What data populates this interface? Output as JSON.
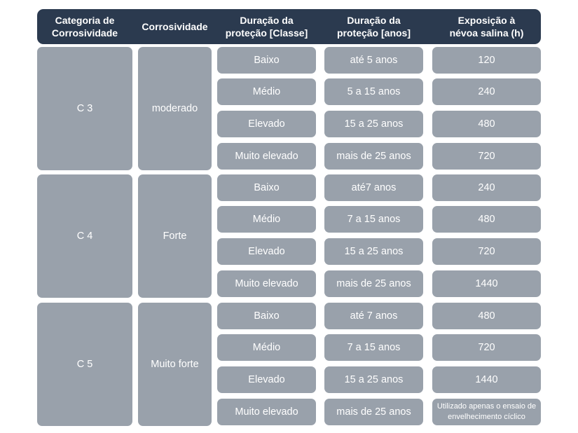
{
  "headers": [
    "Categoria de\nCorrosividade",
    "Corrosividade",
    "Duração da\nproteção [Classe]",
    "Duração da\nproteção [anos]",
    "Exposição à\nnévoa salina (h)"
  ],
  "groups": [
    {
      "category": "C 3",
      "corrosivity": "moderado",
      "rows": [
        {
          "class": "Baixo",
          "years": "até 5 anos",
          "exposure": "120"
        },
        {
          "class": "Médio",
          "years": "5 a 15 anos",
          "exposure": "240"
        },
        {
          "class": "Elevado",
          "years": "15 a 25 anos",
          "exposure": "480"
        },
        {
          "class": "Muito elevado",
          "years": "mais de 25 anos",
          "exposure": "720"
        }
      ]
    },
    {
      "category": "C 4",
      "corrosivity": "Forte",
      "rows": [
        {
          "class": "Baixo",
          "years": "até7 anos",
          "exposure": "240"
        },
        {
          "class": "Médio",
          "years": "7 a 15 anos",
          "exposure": "480"
        },
        {
          "class": "Elevado",
          "years": "15 a 25 anos",
          "exposure": "720"
        },
        {
          "class": "Muito elevado",
          "years": "mais de 25 anos",
          "exposure": "1440"
        }
      ]
    },
    {
      "category": "C 5",
      "corrosivity": "Muito forte",
      "rows": [
        {
          "class": "Baixo",
          "years": "até 7 anos",
          "exposure": "480"
        },
        {
          "class": "Médio",
          "years": "7 a 15 anos",
          "exposure": "720"
        },
        {
          "class": "Elevado",
          "years": "15 a 25 anos",
          "exposure": "1440"
        },
        {
          "class": "Muito elevado",
          "years": "mais de 25 anos",
          "exposure": "Utilizado apenas o ensaio de\nenvelhecimento cíclico"
        }
      ]
    }
  ],
  "colors": {
    "header": "#2b3a4f",
    "cell": "#99a1ab",
    "text": "#ffffff"
  }
}
